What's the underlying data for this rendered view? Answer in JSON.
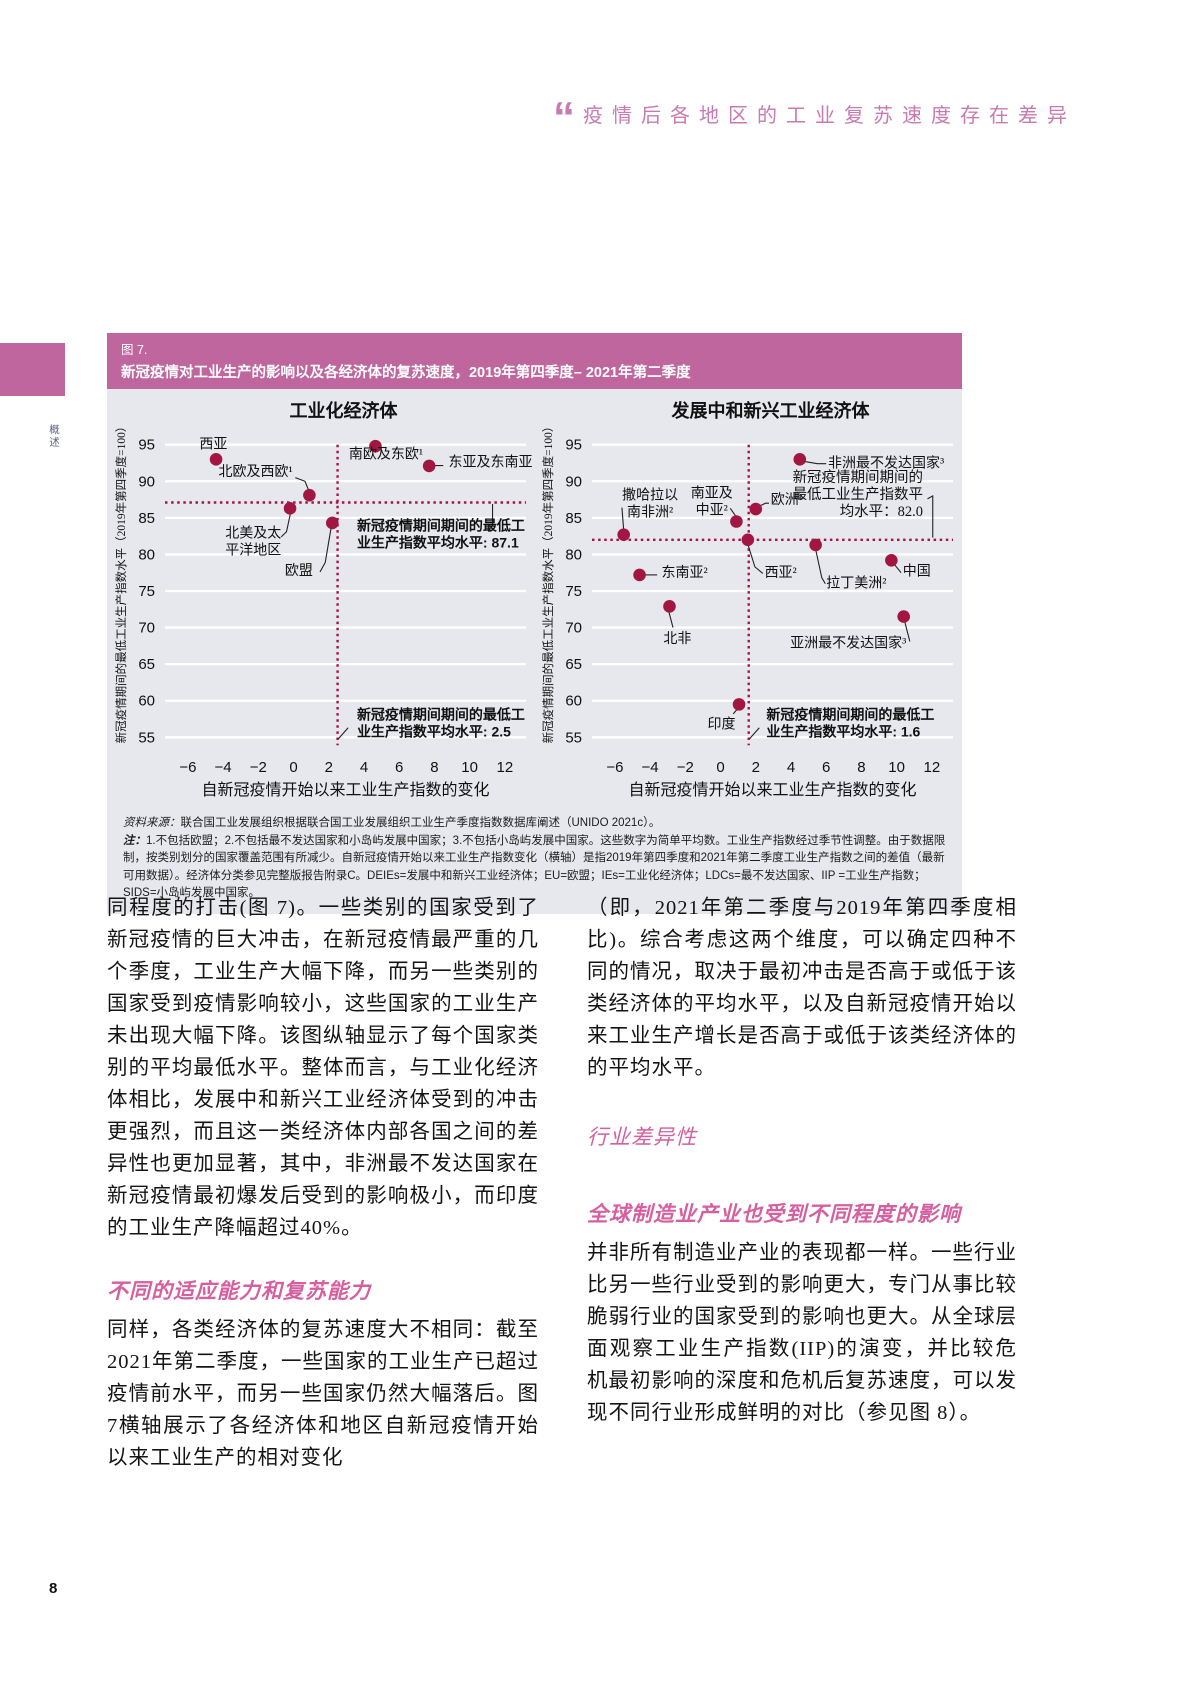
{
  "page": {
    "number": "8",
    "side_vertical_text": "概述"
  },
  "colors": {
    "accent_pink": "#c0669e",
    "heading_pink": "#d55f9f",
    "quote_pink": "#c87ab2",
    "dot_crimson": "#a21742",
    "panel_bg": "#e7e7ee"
  },
  "pull_quote": {
    "mark": "“",
    "text": "疫情后各地区的工业复苏速度存在差异"
  },
  "figure": {
    "label": "图 7.",
    "title": "新冠疫情对工业生产的影响以及各经济体的复苏速度，2019年第四季度– 2021年第二季度",
    "source_label": "资料来源：",
    "source_text": "联合国工业发展组织根据联合国工业发展组织工业生产季度指数数据库阐述（UNIDO 2021c）。",
    "note_label": "注：",
    "note_text": "1.不包括欧盟；2.不包括最不发达国家和小岛屿发展中国家；3.不包括小岛屿发展中国家。这些数字为简单平均数。工业生产指数经过季节性调整。由于数据限制，按类别划分的国家覆盖范围有所减少。自新冠疫情开始以来工业生产指数变化（横轴）是指2019年第四季度和2021年第二季度工业生产指数之间的差值（最新可用数据）。经济体分类参见完整版报告附录C。DEIEs=发展中和新兴工业经济体；EU=欧盟；IEs=工业化经济体；LDCs=最不发达国家、IIP =工业生产指数；SIDS=小岛屿发展中国家。"
  },
  "chart_data": [
    {
      "type": "scatter",
      "title": "工业化经济体",
      "xlabel": "自新冠疫情开始以来工业生产指数的变化",
      "ylabel": "新冠疫情期间的最低工业生产指数水平（2019年第四季度=100）",
      "xlim": [
        -7.3,
        13.2
      ],
      "ylim": [
        53.4,
        96.6
      ],
      "xticks": [
        -6,
        -4,
        -2,
        0,
        2,
        4,
        6,
        8,
        10,
        12
      ],
      "yticks": [
        55,
        60,
        65,
        70,
        75,
        80,
        85,
        90,
        95
      ],
      "grid": true,
      "legend": false,
      "mean_x": 2.5,
      "mean_y": 87.1,
      "points": [
        {
          "label": [
            "西亚"
          ],
          "x": -4.4,
          "y": 93.0,
          "lx": -5.35,
          "ly": 94.5,
          "anchor": "start"
        },
        {
          "label": [
            "北欧及西欧¹"
          ],
          "x": 0.9,
          "y": 88.1,
          "lx": -0.05,
          "ly": 90.7,
          "anchor": "end",
          "leader": [
            [
              0.1,
              90.5
            ],
            [
              0.65,
              90.0
            ],
            [
              0.9,
              88.5
            ]
          ]
        },
        {
          "label": [
            "北美及太",
            "平洋地区"
          ],
          "x": -0.2,
          "y": 86.3,
          "lx": -0.7,
          "ly": 82.3,
          "anchor": "end",
          "leader": [
            [
              -0.7,
              82.4
            ],
            [
              -0.4,
              83.1
            ],
            [
              -0.15,
              85.9
            ]
          ]
        },
        {
          "label": [
            "欧盟"
          ],
          "x": 2.2,
          "y": 84.3,
          "lx": 1.1,
          "ly": 77.2,
          "anchor": "end",
          "leader": [
            [
              1.5,
              77.6
            ],
            [
              1.8,
              78.9
            ],
            [
              2.15,
              83.9
            ]
          ]
        },
        {
          "label": [
            "南欧及东欧¹"
          ],
          "x": 4.65,
          "y": 94.8,
          "lx": 5.25,
          "ly": 93.1,
          "anchor": "middle"
        },
        {
          "label": [
            "东亚及东南亚"
          ],
          "x": 7.7,
          "y": 92.1,
          "lx": 8.8,
          "ly": 92.0,
          "anchor": "start",
          "leader": [
            [
              7.95,
              92.15
            ],
            [
              8.5,
              92.15
            ]
          ]
        }
      ],
      "annotations": [
        {
          "lines": [
            "新冠疫情期间期间的最低工",
            "业生产指数平均水平: 87.1"
          ],
          "x": 3.6,
          "y": 83.3,
          "anchor": "start",
          "bold": true,
          "leader": [
            [
              11.05,
              83.2
            ],
            [
              11.3,
              84.0
            ],
            [
              11.3,
              86.9
            ]
          ]
        },
        {
          "lines": [
            "新冠疫情期间期间的最低工",
            "业生产指数平均水平: 2.5"
          ],
          "x": 3.6,
          "y": 57.4,
          "anchor": "start",
          "bold": true,
          "leader": [
            [
              2.55,
              54.8
            ],
            [
              3.1,
              56.3
            ]
          ]
        }
      ]
    },
    {
      "type": "scatter",
      "title": "发展中和新兴工业经济体",
      "xlabel": "自新冠疫情开始以来工业生产指数的变化",
      "ylabel": "新冠疫情期间的最低工业生产指数水平（2019年第四季度=100）",
      "xlim": [
        -7.3,
        13.2
      ],
      "ylim": [
        53.4,
        96.6
      ],
      "xticks": [
        -6,
        -4,
        -2,
        0,
        2,
        4,
        6,
        8,
        10,
        12
      ],
      "yticks": [
        55,
        60,
        65,
        70,
        75,
        80,
        85,
        90,
        95
      ],
      "grid": true,
      "legend": false,
      "mean_x": 1.6,
      "mean_y": 82.0,
      "points": [
        {
          "label": [
            "非洲最不发达国家³"
          ],
          "x": 4.5,
          "y": 93.0,
          "lx": 6.1,
          "ly": 91.9,
          "anchor": "start",
          "leader": [
            [
              4.8,
              92.7
            ],
            [
              5.5,
              92.4
            ],
            [
              6.0,
              92.4
            ]
          ]
        },
        {
          "label": [
            "撒哈拉以",
            "南非洲²"
          ],
          "x": -5.5,
          "y": 82.7,
          "lx": -4.0,
          "ly": 87.5,
          "anchor": "middle",
          "leader": [
            [
              -5.5,
              83.3
            ],
            [
              -5.6,
              86.4
            ]
          ]
        },
        {
          "label": [
            "南亚及",
            "中亚²"
          ],
          "x": 0.9,
          "y": 84.5,
          "lx": -0.5,
          "ly": 87.8,
          "anchor": "middle",
          "leader": [
            [
              0.9,
              85.1
            ],
            [
              0.55,
              86.3
            ]
          ]
        },
        {
          "label": [
            "欧洲¹"
          ],
          "x": 2.0,
          "y": 86.2,
          "lx": 2.85,
          "ly": 86.9,
          "anchor": "start",
          "leader": [
            [
              2.2,
              86.6
            ],
            [
              2.55,
              87.0
            ],
            [
              2.75,
              87.0
            ]
          ]
        },
        {
          "label": [
            "西亚²"
          ],
          "x": 1.55,
          "y": 82.0,
          "lx": 2.5,
          "ly": 76.9,
          "anchor": "start",
          "leader": [
            [
              1.55,
              81.4
            ],
            [
              1.95,
              78.3
            ],
            [
              2.4,
              77.4
            ]
          ]
        },
        {
          "label": [
            "拉丁美洲²"
          ],
          "x": 5.4,
          "y": 81.3,
          "lx": 6.0,
          "ly": 75.5,
          "anchor": "start",
          "leader": [
            [
              5.4,
              80.7
            ],
            [
              5.75,
              76.8
            ],
            [
              5.95,
              76.0
            ]
          ]
        },
        {
          "label": [
            "中国"
          ],
          "x": 9.7,
          "y": 79.2,
          "lx": 10.35,
          "ly": 77.1,
          "anchor": "start",
          "leader": [
            [
              9.85,
              78.7
            ],
            [
              10.25,
              77.5
            ]
          ]
        },
        {
          "label": [
            "东南亚²"
          ],
          "x": -4.6,
          "y": 77.2,
          "lx": -3.35,
          "ly": 76.9,
          "anchor": "start",
          "leader": [
            [
              -4.3,
              77.2
            ],
            [
              -3.6,
              77.2
            ]
          ]
        },
        {
          "label": [
            "北非"
          ],
          "x": -2.9,
          "y": 72.9,
          "lx": -2.45,
          "ly": 67.9,
          "anchor": "middle",
          "leader": [
            [
              -2.95,
              72.3
            ],
            [
              -2.7,
              70.0
            ]
          ]
        },
        {
          "label": [
            "印度"
          ],
          "x": 1.05,
          "y": 59.5,
          "lx": 0.85,
          "ly": 56.2,
          "anchor": "end",
          "leader": [
            [
              1.0,
              59.0
            ],
            [
              0.72,
              58.2
            ]
          ]
        },
        {
          "label": [
            "亚洲最不发达国家³"
          ],
          "x": 10.4,
          "y": 71.5,
          "lx": 10.55,
          "ly": 67.3,
          "anchor": "end",
          "leader": [
            [
              10.45,
              70.9
            ],
            [
              10.75,
              68.1
            ]
          ]
        }
      ],
      "annotations": [
        {
          "lines": [
            "新冠疫情期间期间的",
            "最低工业生产指数平",
            "均水平：82.0"
          ],
          "x": 11.5,
          "y": 89.9,
          "anchor": "end",
          "bold": false,
          "leader": [
            [
              11.75,
              87.6
            ],
            [
              12.05,
              88.0
            ],
            [
              12.05,
              82.3
            ]
          ]
        },
        {
          "lines": [
            "新冠疫情期间期间的最低工",
            "业生产指数平均水平: 1.6"
          ],
          "x": 2.6,
          "y": 57.4,
          "anchor": "start",
          "bold": true,
          "leader": [
            [
              1.65,
              54.8
            ],
            [
              2.2,
              56.3
            ]
          ]
        }
      ]
    }
  ],
  "body": {
    "left_col": {
      "para1": "同程度的打击(图 7)。一些类别的国家受到了新冠疫情的巨大冲击，在新冠疫情最严重的几个季度，工业生产大幅下降，而另一些类别的国家受到疫情影响较小，这些国家的工业生产未出现大幅下降。该图纵轴显示了每个国家类别的平均最低水平。整体而言，与工业化经济体相比，发展中和新兴工业经济体受到的冲击更强烈，而且这一类经济体内部各国之间的差异性也更加显著，其中，非洲最不发达国家在新冠疫情最初爆发后受到的影响极小，而印度的工业生产降幅超过40%。",
      "heading1": "不同的适应能力和复苏能力",
      "para2": "同样，各类经济体的复苏速度大不相同：截至2021年第二季度，一些国家的工业生产已超过疫情前水平，而另一些国家仍然大幅落后。图7横轴展示了各经济体和地区自新冠疫情开始以来工业生产的相对变化"
    },
    "right_col": {
      "para1": "（即，2021年第二季度与2019年第四季度相比)。综合考虑这两个维度，可以确定四种不同的情况，取决于最初冲击是否高于或低于该类经济体的平均水平，以及自新冠疫情开始以来工业生产增长是否高于或低于该类经济体的的平均水平。",
      "heading1": "行业差异性",
      "heading2": "全球制造业产业也受到不同程度的影响",
      "para2": "并非所有制造业产业的表现都一样。一些行业比另一些行业受到的影响更大，专门从事比较脆弱行业的国家受到的影响也更大。从全球层面观察工业生产指数(IIP)的演变，并比较危机最初影响的深度和危机后复苏速度，可以发现不同行业形成鲜明的对比（参见图 8）。"
    }
  }
}
